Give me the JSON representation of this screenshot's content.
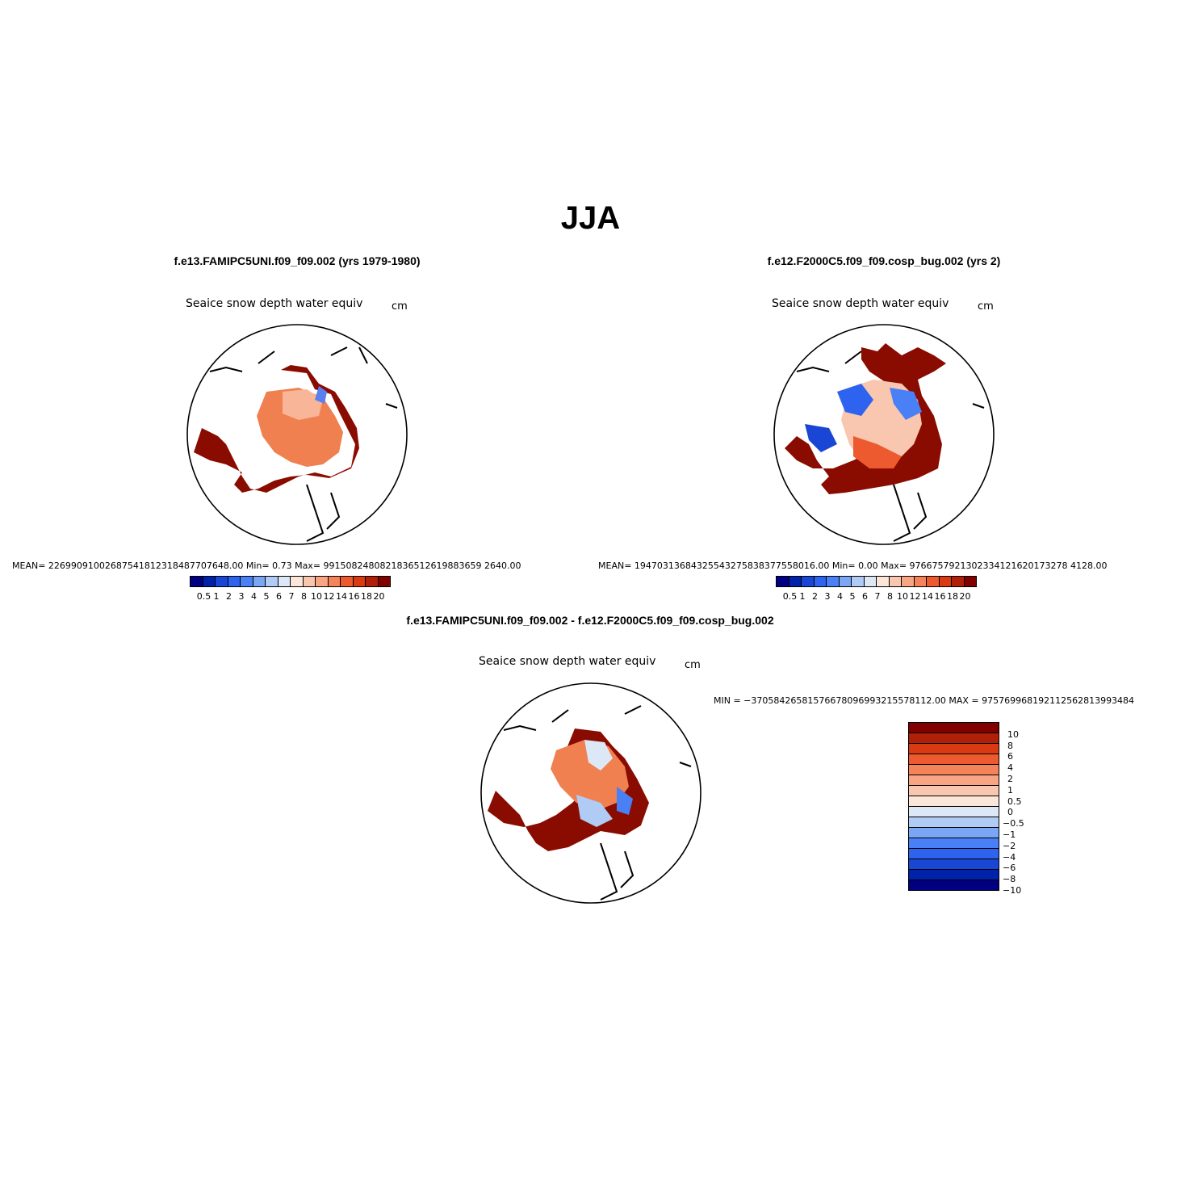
{
  "title": "JJA",
  "panels": [
    {
      "case_title": "f.e13.FAMIPC5UNI.f09_f09.002 (yrs 1979-1980)",
      "variable": "Seaice snow depth water equiv",
      "units": "cm",
      "stats": "MEAN= 226990910026875418123184877076 48.00    Min=     0.73    Max= 9915082480821836512619883659 2640.00",
      "stats_text": "MEAN= 22699091002687541812318487707648.00    Min=     0.73    Max= 9915082480821836512619883659 2640.00"
    },
    {
      "case_title": "f.e12.F2000C5.f09_f09.cosp_bug.002 (yrs 2)",
      "variable": "Seaice snow depth water equiv",
      "units": "cm",
      "stats_text": "MEAN= 19470313684325543275838377558016.00    Min=     0.00    Max= 9766757921302334121620173278 4128.00"
    },
    {
      "case_title": "f.e13.FAMIPC5UNI.f09_f09.002 - f.e12.F2000C5.f09_f09.cosp_bug.002",
      "variable": "Seaice snow depth water equiv",
      "units": "cm",
      "stats_text": "MIN = −37058426581576678096993215578112.00 MAX = 975769968192112562813993484"
    }
  ],
  "colorbar_levels": [
    "0.5",
    "1",
    "2",
    "3",
    "4",
    "5",
    "6",
    "7",
    "8",
    "10",
    "12",
    "14",
    "16",
    "18",
    "20"
  ],
  "colorbar_colors": [
    "#000080",
    "#0022aa",
    "#1a46d6",
    "#2e63f0",
    "#4a80f5",
    "#7aa6f5",
    "#b0ccf5",
    "#dde8f7",
    "#fbe6da",
    "#f9c7b0",
    "#f7a583",
    "#f4835a",
    "#ee5a2f",
    "#d93a12",
    "#b02008",
    "#800000"
  ],
  "diff_levels": [
    "10",
    "8",
    "6",
    "4",
    "2",
    "1",
    "0.5",
    "0",
    "−0.5",
    "−1",
    "−2",
    "−4",
    "−6",
    "−8",
    "−10"
  ],
  "diff_colors": [
    "#800000",
    "#b02008",
    "#d93a12",
    "#ee5a2f",
    "#f4835a",
    "#f7a583",
    "#f9c7b0",
    "#fbe6da",
    "#dde8f7",
    "#b0ccf5",
    "#7aa6f5",
    "#4a80f5",
    "#2e63f0",
    "#1a46d6",
    "#0022aa",
    "#000080"
  ]
}
